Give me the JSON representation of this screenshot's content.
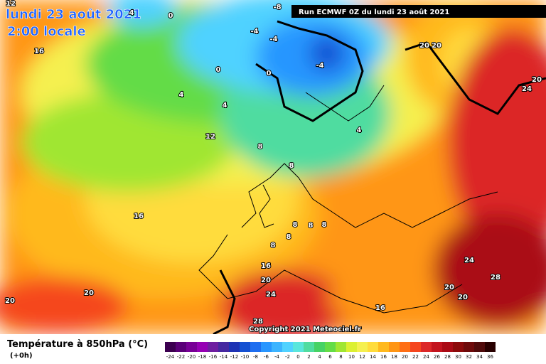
{
  "header": {
    "title": "lundi 23 août 2021",
    "subtitle": "2:00 locale",
    "run": "Run ECMWF 0Z du lundi 23 août 2021",
    "copyright": "Copyright 2021 Meteociel.fr"
  },
  "legend": {
    "title": "Température à 850hPa (°C)",
    "step": "(+0h)",
    "labels": [
      -24,
      -22,
      -20,
      -18,
      -16,
      -14,
      -12,
      -10,
      -8,
      -6,
      -4,
      -2,
      0,
      2,
      4,
      6,
      8,
      10,
      12,
      14,
      16,
      18,
      20,
      22,
      24,
      26,
      28,
      30,
      32,
      34,
      36
    ],
    "colors": [
      "#3c0050",
      "#5a0078",
      "#780096",
      "#9600b4",
      "#6e1ea0",
      "#4628a0",
      "#1e32b4",
      "#1450d2",
      "#1e6ef0",
      "#2896ff",
      "#3cb4ff",
      "#50d2ff",
      "#5ae6dc",
      "#50dca0",
      "#46d264",
      "#64dc46",
      "#a0e632",
      "#dcf032",
      "#f5f050",
      "#ffdc3c",
      "#ffb91e",
      "#ff9614",
      "#ff6e14",
      "#f5461e",
      "#dc2828",
      "#c3141e",
      "#aa0a14",
      "#8c0a0a",
      "#6e0a0a",
      "#500a0a",
      "#280000"
    ]
  },
  "map_labels": [
    16,
    12,
    4,
    0,
    -8,
    -4,
    -4,
    -4,
    0,
    0,
    4,
    4,
    12,
    8,
    4,
    16,
    8,
    8,
    8,
    8,
    8,
    16,
    20,
    24,
    28,
    16,
    20,
    20,
    24,
    28,
    20,
    20,
    20,
    20,
    20,
    24,
    8
  ]
}
